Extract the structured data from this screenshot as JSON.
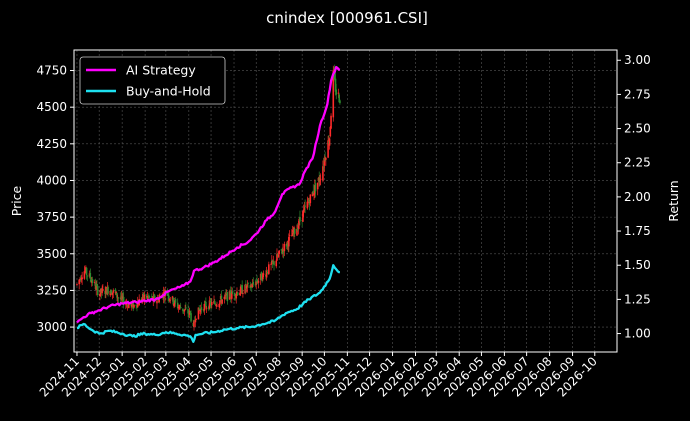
{
  "chart_data": {
    "type": "line",
    "title": "cnindex [000961.CSI]",
    "ylabel": "Price",
    "y2label": "Return",
    "ylim": [
      2830,
      4890
    ],
    "y2lim": [
      0.865,
      3.075
    ],
    "yticks": [
      3000,
      3250,
      3500,
      3750,
      4000,
      4250,
      4500,
      4750
    ],
    "y2ticks": [
      1.0,
      1.25,
      1.5,
      1.75,
      2.0,
      2.25,
      2.5,
      2.75,
      3.0
    ],
    "xticks": [
      "2024-11",
      "2024-12",
      "2025-01",
      "2025-02",
      "2025-03",
      "2025-04",
      "2025-05",
      "2025-06",
      "2025-07",
      "2025-08",
      "2025-09",
      "2025-10",
      "2025-11",
      "2025-12",
      "2026-01",
      "2026-02",
      "2026-03",
      "2026-04",
      "2026-05",
      "2026-06",
      "2026-07",
      "2026-08",
      "2026-09",
      "2026-10"
    ],
    "grid": true,
    "legend_position": "top-left",
    "candle_colors": {
      "up": "#ff2a2a",
      "down": "#2e8b2e"
    },
    "series": [
      {
        "name": "AI Strategy",
        "color": "#ff00ff",
        "axis": "right",
        "points": [
          [
            "2024-11-01",
            1.08
          ],
          [
            "2024-11-10",
            1.12
          ],
          [
            "2024-11-20",
            1.15
          ],
          [
            "2024-12-01",
            1.17
          ],
          [
            "2024-12-15",
            1.2
          ],
          [
            "2025-01-01",
            1.22
          ],
          [
            "2025-01-20",
            1.23
          ],
          [
            "2025-02-01",
            1.24
          ],
          [
            "2025-02-15",
            1.25
          ],
          [
            "2025-02-25",
            1.28
          ],
          [
            "2025-03-05",
            1.31
          ],
          [
            "2025-03-15",
            1.33
          ],
          [
            "2025-03-25",
            1.35
          ],
          [
            "2025-04-03",
            1.38
          ],
          [
            "2025-04-08",
            1.46
          ],
          [
            "2025-04-20",
            1.48
          ],
          [
            "2025-05-05",
            1.52
          ],
          [
            "2025-05-20",
            1.57
          ],
          [
            "2025-06-05",
            1.63
          ],
          [
            "2025-06-20",
            1.67
          ],
          [
            "2025-07-01",
            1.73
          ],
          [
            "2025-07-15",
            1.83
          ],
          [
            "2025-07-25",
            1.88
          ],
          [
            "2025-08-05",
            2.02
          ],
          [
            "2025-08-18",
            2.07
          ],
          [
            "2025-08-28",
            2.09
          ],
          [
            "2025-09-05",
            2.19
          ],
          [
            "2025-09-15",
            2.28
          ],
          [
            "2025-09-25",
            2.52
          ],
          [
            "2025-10-05",
            2.68
          ],
          [
            "2025-10-10",
            2.85
          ],
          [
            "2025-10-13",
            2.9
          ],
          [
            "2025-10-17",
            2.95
          ],
          [
            "2025-10-22",
            2.93
          ]
        ]
      },
      {
        "name": "Buy-and-Hold",
        "color": "#1ee0f0",
        "axis": "right",
        "points": [
          [
            "2024-11-01",
            1.04
          ],
          [
            "2024-11-10",
            1.07
          ],
          [
            "2024-11-20",
            1.03
          ],
          [
            "2024-12-01",
            1.0
          ],
          [
            "2024-12-15",
            1.02
          ],
          [
            "2025-01-01",
            1.0
          ],
          [
            "2025-01-15",
            0.98
          ],
          [
            "2025-02-01",
            1.0
          ],
          [
            "2025-02-15",
            0.99
          ],
          [
            "2025-03-01",
            1.01
          ],
          [
            "2025-03-15",
            1.0
          ],
          [
            "2025-04-03",
            0.98
          ],
          [
            "2025-04-07",
            0.94
          ],
          [
            "2025-04-10",
            0.99
          ],
          [
            "2025-04-20",
            1.0
          ],
          [
            "2025-05-05",
            1.01
          ],
          [
            "2025-05-20",
            1.03
          ],
          [
            "2025-06-05",
            1.04
          ],
          [
            "2025-06-25",
            1.05
          ],
          [
            "2025-07-10",
            1.07
          ],
          [
            "2025-07-25",
            1.09
          ],
          [
            "2025-08-10",
            1.15
          ],
          [
            "2025-08-25",
            1.18
          ],
          [
            "2025-09-10",
            1.25
          ],
          [
            "2025-09-25",
            1.3
          ],
          [
            "2025-10-08",
            1.4
          ],
          [
            "2025-10-13",
            1.5
          ],
          [
            "2025-10-17",
            1.47
          ],
          [
            "2025-10-22",
            1.45
          ]
        ]
      }
    ],
    "price_points": [
      [
        "2024-11-01",
        3290
      ],
      [
        "2024-11-10",
        3390
      ],
      [
        "2024-11-20",
        3330
      ],
      [
        "2024-12-01",
        3230
      ],
      [
        "2024-12-15",
        3260
      ],
      [
        "2025-01-01",
        3180
      ],
      [
        "2025-01-15",
        3140
      ],
      [
        "2025-02-01",
        3210
      ],
      [
        "2025-02-15",
        3180
      ],
      [
        "2025-03-01",
        3240
      ],
      [
        "2025-03-15",
        3150
      ],
      [
        "2025-04-03",
        3090
      ],
      [
        "2025-04-07",
        2980
      ],
      [
        "2025-04-10",
        3080
      ],
      [
        "2025-04-20",
        3140
      ],
      [
        "2025-05-05",
        3160
      ],
      [
        "2025-05-20",
        3200
      ],
      [
        "2025-06-05",
        3240
      ],
      [
        "2025-06-25",
        3280
      ],
      [
        "2025-07-10",
        3350
      ],
      [
        "2025-07-25",
        3440
      ],
      [
        "2025-08-10",
        3560
      ],
      [
        "2025-08-25",
        3680
      ],
      [
        "2025-09-10",
        3860
      ],
      [
        "2025-09-25",
        4020
      ],
      [
        "2025-10-08",
        4300
      ],
      [
        "2025-10-13",
        4720
      ],
      [
        "2025-10-17",
        4600
      ],
      [
        "2025-10-22",
        4560
      ]
    ]
  },
  "legend": [
    {
      "label": "AI Strategy",
      "color": "#ff00ff"
    },
    {
      "label": "Buy-and-Hold",
      "color": "#1ee0f0"
    }
  ]
}
